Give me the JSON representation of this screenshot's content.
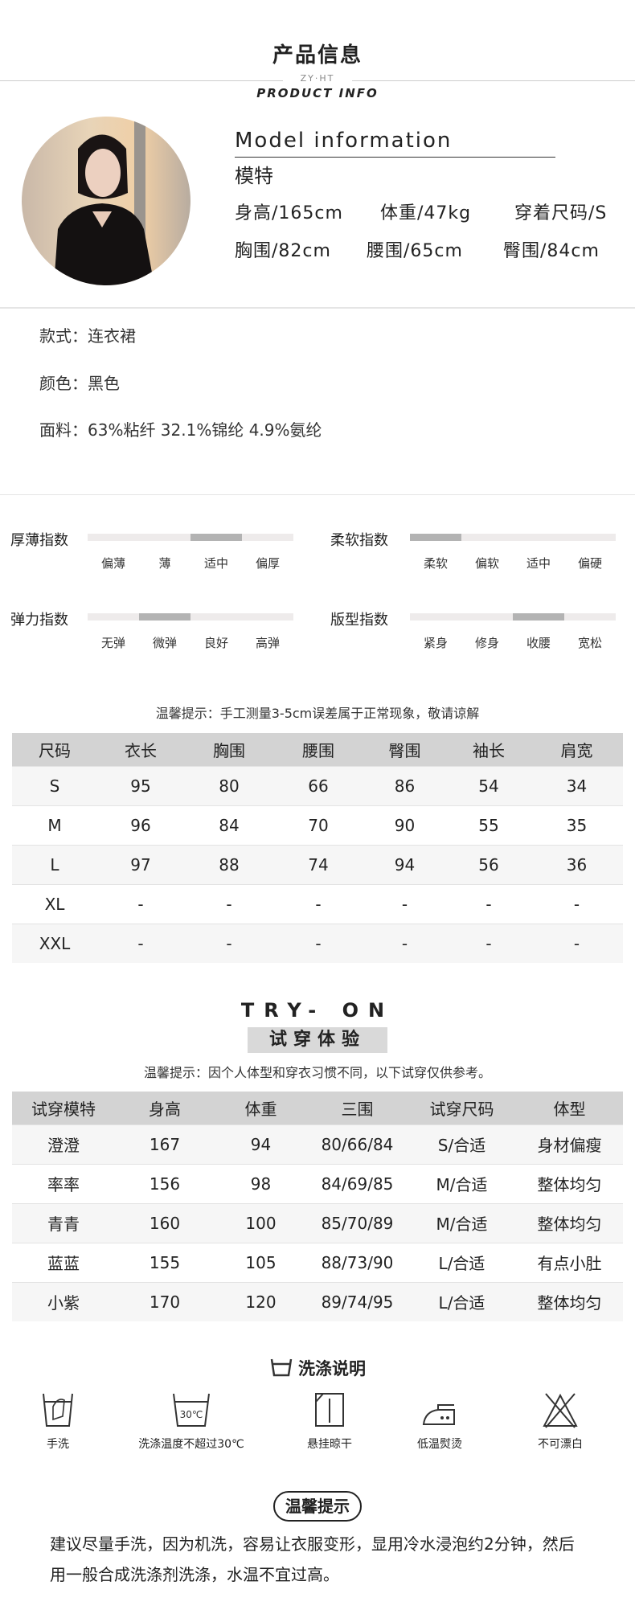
{
  "header": {
    "title": "产品信息",
    "brand": "ZY·HT",
    "subtitle": "PRODUCT INFO"
  },
  "model": {
    "heading_en": "Model information",
    "heading_cn": "模特",
    "row1": [
      "身高/165cm",
      "体重/47kg",
      "穿着尺码/S"
    ],
    "row2": [
      "胸围/82cm",
      "腰围/65cm",
      "臀围/84cm"
    ]
  },
  "attributes": [
    "款式：连衣裙",
    "颜色：黑色",
    "面料：63%粘纤 32.1%锦纶 4.9%氨纶"
  ],
  "indices": [
    {
      "label": "厚薄指数",
      "options": [
        "偏薄",
        "薄",
        "适中",
        "偏厚"
      ],
      "selected": 2
    },
    {
      "label": "柔软指数",
      "options": [
        "柔软",
        "偏软",
        "适中",
        "偏硬"
      ],
      "selected": 0
    },
    {
      "label": "弹力指数",
      "options": [
        "无弹",
        "微弹",
        "良好",
        "高弹"
      ],
      "selected": 1
    },
    {
      "label": "版型指数",
      "options": [
        "紧身",
        "修身",
        "收腰",
        "宽松"
      ],
      "selected": 2
    }
  ],
  "size_table": {
    "note": "温馨提示：手工测量3-5cm误差属于正常现象，敬请谅解",
    "headers": [
      "尺码",
      "衣长",
      "胸围",
      "腰围",
      "臀围",
      "袖长",
      "肩宽"
    ],
    "rows": [
      [
        "S",
        "95",
        "80",
        "66",
        "86",
        "54",
        "34"
      ],
      [
        "M",
        "96",
        "84",
        "70",
        "90",
        "55",
        "35"
      ],
      [
        "L",
        "97",
        "88",
        "74",
        "94",
        "56",
        "36"
      ],
      [
        "XL",
        "-",
        "-",
        "-",
        "-",
        "-",
        "-"
      ],
      [
        "XXL",
        "-",
        "-",
        "-",
        "-",
        "-",
        "-"
      ]
    ]
  },
  "tryon": {
    "title_en": "TRY- ON",
    "title_cn": "试穿体验",
    "note": "温馨提示：因个人体型和穿衣习惯不同，以下试穿仅供参考。",
    "headers": [
      "试穿模特",
      "身高",
      "体重",
      "三围",
      "试穿尺码",
      "体型"
    ],
    "rows": [
      [
        "澄澄",
        "167",
        "94",
        "80/66/84",
        "S/合适",
        "身材偏瘦"
      ],
      [
        "率率",
        "156",
        "98",
        "84/69/85",
        "M/合适",
        "整体均匀"
      ],
      [
        "青青",
        "160",
        "100",
        "85/70/89",
        "M/合适",
        "整体均匀"
      ],
      [
        "蓝蓝",
        "155",
        "105",
        "88/73/90",
        "L/合适",
        "有点小肚"
      ],
      [
        "小紫",
        "170",
        "120",
        "89/74/95",
        "L/合适",
        "整体均匀"
      ]
    ]
  },
  "washing": {
    "title": "洗涤说明",
    "title_icon": "wash-basin-icon",
    "items": [
      {
        "icon": "hand-wash-icon",
        "label": "手洗"
      },
      {
        "icon": "wash-30-icon",
        "label": "洗涤温度不超过30℃",
        "icon_text": "30℃"
      },
      {
        "icon": "hang-dry-icon",
        "label": "悬挂晾干"
      },
      {
        "icon": "low-iron-icon",
        "label": "低温熨烫"
      },
      {
        "icon": "no-bleach-icon",
        "label": "不可漂白"
      }
    ]
  },
  "tips": {
    "title": "温馨提示",
    "lines": [
      "建议尽量手洗，因为机洗，容易让衣服变形，显用冷水浸泡约2分钟，然后",
      "用一般合成洗涤剂洗涤，水温不宜过高。"
    ]
  }
}
